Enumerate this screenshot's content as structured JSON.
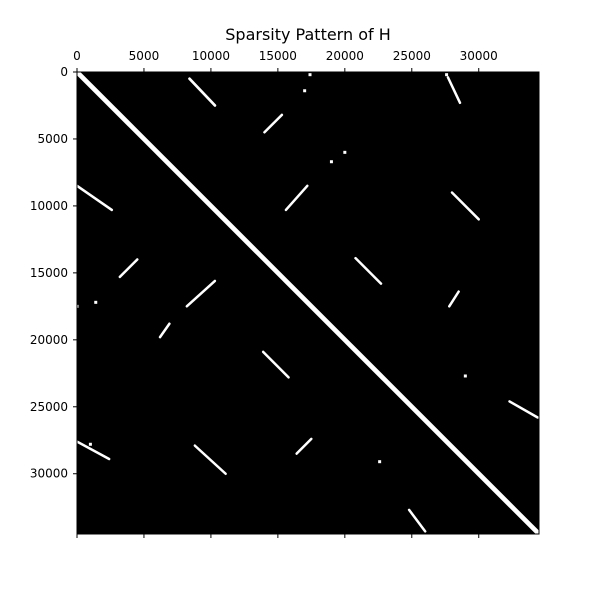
{
  "chart_data": {
    "type": "spy",
    "title": "Sparsity Pattern of H",
    "xlabel": "",
    "ylabel": "",
    "xlim": [
      0,
      34500
    ],
    "ylim": [
      34500,
      0
    ],
    "x_ticks": [
      0,
      5000,
      10000,
      15000,
      20000,
      25000,
      30000
    ],
    "y_ticks": [
      0,
      5000,
      10000,
      15000,
      20000,
      25000,
      30000
    ],
    "x_axis_position": "top",
    "background_color": "#000000",
    "marker_color": "#ffffff",
    "grid": false,
    "segments": [
      {
        "name": "main-diagonal",
        "from": [
          0,
          0
        ],
        "to": [
          34500,
          34500
        ],
        "width": 350
      },
      {
        "name": "band-a",
        "from": [
          8400,
          500
        ],
        "to": [
          10300,
          2500
        ],
        "width": 200
      },
      {
        "name": "band-b",
        "from": [
          27700,
          400
        ],
        "to": [
          28600,
          2300
        ],
        "width": 150
      },
      {
        "name": "band-c",
        "from": [
          14000,
          4500
        ],
        "to": [
          15300,
          3200
        ],
        "width": 150
      },
      {
        "name": "band-d",
        "from": [
          0,
          8500
        ],
        "to": [
          2600,
          10300
        ],
        "width": 150
      },
      {
        "name": "band-e",
        "from": [
          15600,
          10300
        ],
        "to": [
          17200,
          8500
        ],
        "width": 150
      },
      {
        "name": "band-f",
        "from": [
          28000,
          9000
        ],
        "to": [
          30000,
          11000
        ],
        "width": 150
      },
      {
        "name": "band-g",
        "from": [
          3200,
          15300
        ],
        "to": [
          4500,
          14000
        ],
        "width": 150
      },
      {
        "name": "band-h",
        "from": [
          20800,
          13900
        ],
        "to": [
          22700,
          15800
        ],
        "width": 150
      },
      {
        "name": "band-i",
        "from": [
          8200,
          17500
        ],
        "to": [
          10300,
          15600
        ],
        "width": 150
      },
      {
        "name": "band-j",
        "from": [
          27800,
          17500
        ],
        "to": [
          28500,
          16400
        ],
        "width": 150
      },
      {
        "name": "band-k",
        "from": [
          6200,
          19800
        ],
        "to": [
          6900,
          18800
        ],
        "width": 150
      },
      {
        "name": "band-l",
        "from": [
          13900,
          20900
        ],
        "to": [
          15800,
          22800
        ],
        "width": 150
      },
      {
        "name": "band-m",
        "from": [
          32300,
          24600
        ],
        "to": [
          34400,
          25800
        ],
        "width": 150
      },
      {
        "name": "band-n",
        "from": [
          0,
          27600
        ],
        "to": [
          2400,
          28900
        ],
        "width": 150
      },
      {
        "name": "band-o",
        "from": [
          8800,
          27900
        ],
        "to": [
          11100,
          30000
        ],
        "width": 150
      },
      {
        "name": "band-p",
        "from": [
          16400,
          28500
        ],
        "to": [
          17500,
          27400
        ],
        "width": 150
      },
      {
        "name": "band-q",
        "from": [
          24800,
          32700
        ],
        "to": [
          26000,
          34300
        ],
        "width": 150
      }
    ],
    "points": [
      [
        17000,
        1400
      ],
      [
        17400,
        200
      ],
      [
        27600,
        200
      ],
      [
        20000,
        6000
      ],
      [
        19000,
        6700
      ],
      [
        1400,
        17200
      ],
      [
        29000,
        22700
      ],
      [
        22600,
        29100
      ],
      [
        0,
        17500
      ],
      [
        1000,
        27800
      ]
    ]
  }
}
